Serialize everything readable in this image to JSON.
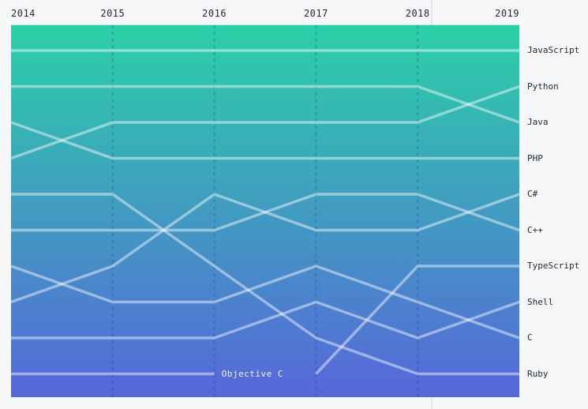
{
  "chart_data": {
    "type": "line",
    "subtype": "bump-rank",
    "title": "",
    "x_labels": [
      "2014",
      "2015",
      "2016",
      "2017",
      "2018",
      "2019"
    ],
    "y_meaning": "popularity rank (1 = top line)",
    "ylim": [
      1,
      10
    ],
    "grid": "dashed-vertical-lines-at-inner-years",
    "legend_position": "labels-at-right-edge",
    "series": [
      {
        "name": "JavaScript",
        "ranks": [
          1,
          1,
          1,
          1,
          1,
          1
        ]
      },
      {
        "name": "Python",
        "ranks": [
          4,
          3,
          3,
          3,
          3,
          2
        ]
      },
      {
        "name": "Java",
        "ranks": [
          2,
          2,
          2,
          2,
          2,
          3
        ]
      },
      {
        "name": "PHP",
        "ranks": [
          3,
          4,
          4,
          4,
          4,
          4
        ]
      },
      {
        "name": "C#",
        "ranks": [
          8,
          7,
          5,
          6,
          6,
          5
        ]
      },
      {
        "name": "C++",
        "ranks": [
          6,
          6,
          6,
          5,
          5,
          6
        ]
      },
      {
        "name": "TypeScript",
        "ranks": [
          null,
          null,
          null,
          10,
          7,
          7
        ]
      },
      {
        "name": "Shell",
        "ranks": [
          9,
          9,
          9,
          8,
          9,
          8
        ]
      },
      {
        "name": "C",
        "ranks": [
          7,
          8,
          8,
          7,
          8,
          9
        ]
      },
      {
        "name": "Ruby",
        "ranks": [
          5,
          5,
          7,
          9,
          10,
          10
        ]
      },
      {
        "name": "Objective C",
        "ranks": [
          10,
          10,
          10,
          null,
          null,
          null
        ],
        "inline_end_label": true
      }
    ]
  },
  "style": {
    "page_background": "#f5f7f9",
    "gradient_top": "#2bd0a7",
    "gradient_bottom": "#5767da",
    "line_color": "rgba(255,255,255,0.45)",
    "gridline_color": "rgba(27,50,160,0.28)",
    "label_color": "#24292e",
    "inline_label_color": "rgba(255,255,255,0.92)",
    "divider_color": "#e2e4e7"
  }
}
